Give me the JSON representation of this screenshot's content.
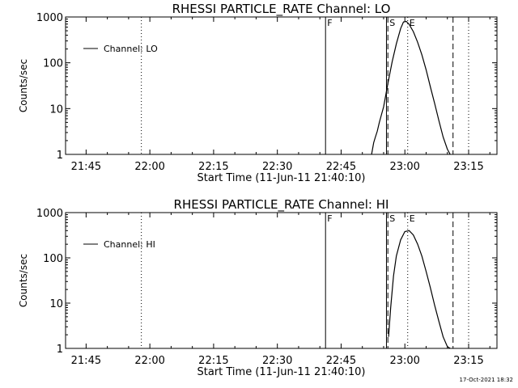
{
  "footer": {
    "timestamp": "17-Oct-2021 18:32"
  },
  "chart_data": [
    {
      "type": "line",
      "title": "RHESSI  PARTICLE_RATE  Channel:  LO",
      "xlabel": "Start Time (11-Jun-11 21:40:10)",
      "ylabel": "Counts/sec",
      "xlim": [
        "21:40:10",
        "23:21:40"
      ],
      "ylim": [
        1,
        1000
      ],
      "yscale": "log",
      "x_ticks": [
        "21:45",
        "22:00",
        "22:15",
        "22:30",
        "22:45",
        "23:00",
        "23:15"
      ],
      "y_ticks": [
        "1",
        "10",
        "100",
        "1000"
      ],
      "legend": {
        "label": "Channel: LO",
        "placement": "top-left"
      },
      "markers": [
        {
          "time": "21:58:00",
          "style": "dotted",
          "label": ""
        },
        {
          "time": "22:41:20",
          "style": "solid",
          "label": "F"
        },
        {
          "time": "22:55:40",
          "style": "solid",
          "label": ""
        },
        {
          "time": "22:56:00",
          "style": "dashed",
          "label": "S"
        },
        {
          "time": "23:00:40",
          "style": "dotted",
          "label": "E"
        },
        {
          "time": "23:11:20",
          "style": "dashed",
          "label": ""
        },
        {
          "time": "23:15:00",
          "style": "dotted",
          "label": ""
        }
      ],
      "series": [
        {
          "x": [
            "22:52:10",
            "22:52:40",
            "22:53:00",
            "22:53:30",
            "22:54:00",
            "22:55:00",
            "22:56:00",
            "22:57:00",
            "22:58:00",
            "22:59:00",
            "22:59:40",
            "23:00:20",
            "23:01:00",
            "23:02:00",
            "23:03:00",
            "23:04:00",
            "23:05:00",
            "23:06:00",
            "23:07:00",
            "23:08:00",
            "23:09:00",
            "23:10:00",
            "23:10:40"
          ],
          "y": [
            1,
            1.8,
            2.3,
            3.2,
            5,
            11,
            35,
            105,
            260,
            560,
            780,
            800,
            690,
            480,
            280,
            150,
            70,
            30,
            13,
            5.5,
            2.4,
            1.3,
            1
          ]
        }
      ]
    },
    {
      "type": "line",
      "title": "RHESSI  PARTICLE_RATE  Channel:  HI",
      "xlabel": "Start Time (11-Jun-11 21:40:10)",
      "ylabel": "Counts/sec",
      "xlim": [
        "21:40:10",
        "23:21:40"
      ],
      "ylim": [
        1,
        1000
      ],
      "yscale": "log",
      "x_ticks": [
        "21:45",
        "22:00",
        "22:15",
        "22:30",
        "22:45",
        "23:00",
        "23:15"
      ],
      "y_ticks": [
        "1",
        "10",
        "100",
        "1000"
      ],
      "legend": {
        "label": "Channel: HI",
        "placement": "top-left"
      },
      "markers": [
        {
          "time": "21:58:00",
          "style": "dotted",
          "label": ""
        },
        {
          "time": "22:41:20",
          "style": "solid",
          "label": "F"
        },
        {
          "time": "22:55:40",
          "style": "solid",
          "label": ""
        },
        {
          "time": "22:56:00",
          "style": "dashed",
          "label": "S"
        },
        {
          "time": "23:00:40",
          "style": "dotted",
          "label": "E"
        },
        {
          "time": "23:11:20",
          "style": "dashed",
          "label": ""
        },
        {
          "time": "23:15:00",
          "style": "dotted",
          "label": ""
        }
      ],
      "series": [
        {
          "x": [
            "22:56:10",
            "22:56:40",
            "22:57:20",
            "22:58:00",
            "22:59:00",
            "23:00:00",
            "23:01:00",
            "23:02:00",
            "23:03:00",
            "23:04:00",
            "23:05:00",
            "23:06:00",
            "23:07:00",
            "23:08:00",
            "23:09:00",
            "23:10:00",
            "23:10:40"
          ],
          "y": [
            1.8,
            8,
            40,
            110,
            250,
            380,
            400,
            320,
            200,
            110,
            50,
            22,
            9,
            4,
            1.8,
            1.1,
            1
          ]
        }
      ]
    }
  ]
}
